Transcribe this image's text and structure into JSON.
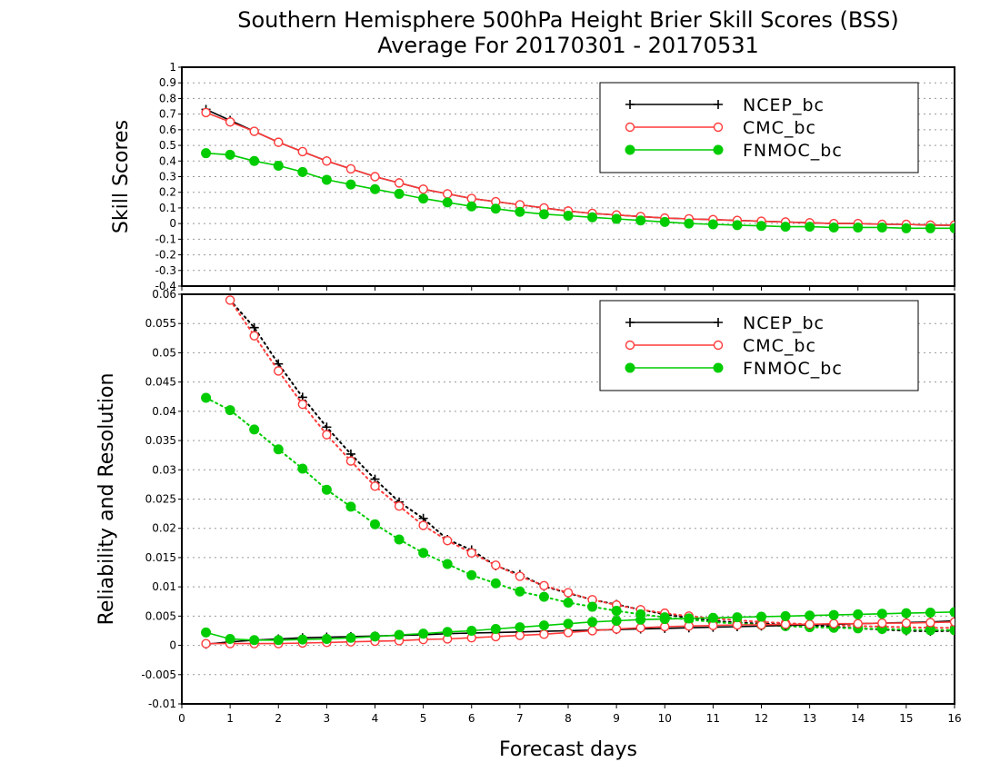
{
  "title_line1": "Southern Hemisphere 500hPa Height Brier Skill Scores (BSS)",
  "title_line2": "Average For 20170301 - 20170531",
  "xlabel": "Forecast days",
  "colors": {
    "NCEP_bc": "#000000",
    "CMC_bc": "#ff3a3a",
    "FNMOC_bc": "#00cc00"
  },
  "chart_data": [
    {
      "type": "line",
      "ylabel": "Skill Scores",
      "xlim": [
        0,
        16
      ],
      "ylim": [
        -0.4,
        1
      ],
      "x_ticks": [
        0,
        1,
        2,
        3,
        4,
        5,
        6,
        7,
        8,
        9,
        10,
        11,
        12,
        13,
        14,
        15,
        16
      ],
      "y_ticks": [
        -0.4,
        -0.3,
        -0.2,
        -0.1,
        0,
        0.1,
        0.2,
        0.3,
        0.4,
        0.5,
        0.6,
        0.7,
        0.8,
        0.9,
        1
      ],
      "y_tick_labels": [
        "-0.4",
        "-0.3",
        "-0.2",
        "-0.1",
        "0",
        "0.1",
        "0.2",
        "0.3",
        "0.4",
        "0.5",
        "0.6",
        "0.7",
        "0.8",
        "0.9",
        "1"
      ],
      "grid": true,
      "legend": {
        "position": "top-right",
        "entries": [
          "NCEP_bc",
          "CMC_bc",
          "FNMOC_bc"
        ]
      },
      "x": [
        0.5,
        1,
        1.5,
        2,
        2.5,
        3,
        3.5,
        4,
        4.5,
        5,
        5.5,
        6,
        6.5,
        7,
        7.5,
        8,
        8.5,
        9,
        9.5,
        10,
        10.5,
        11,
        11.5,
        12,
        12.5,
        13,
        13.5,
        14,
        14.5,
        15,
        15.5,
        16
      ],
      "series": [
        {
          "name": "NCEP_bc",
          "marker": "plus",
          "line": "solid",
          "values": [
            0.73,
            0.66,
            0.59,
            0.52,
            0.46,
            0.4,
            0.35,
            0.3,
            0.26,
            0.22,
            0.19,
            0.16,
            0.14,
            0.12,
            0.1,
            0.08,
            0.065,
            0.055,
            0.045,
            0.035,
            0.03,
            0.025,
            0.02,
            0.015,
            0.01,
            0.005,
            0.0,
            0.0,
            -0.005,
            -0.005,
            -0.01,
            -0.01
          ]
        },
        {
          "name": "CMC_bc",
          "marker": "open-circle",
          "line": "solid",
          "values": [
            0.71,
            0.65,
            0.59,
            0.52,
            0.46,
            0.4,
            0.35,
            0.3,
            0.26,
            0.22,
            0.19,
            0.16,
            0.14,
            0.12,
            0.1,
            0.08,
            0.065,
            0.055,
            0.045,
            0.035,
            0.03,
            0.025,
            0.02,
            0.015,
            0.01,
            0.005,
            0.0,
            0.0,
            -0.005,
            -0.005,
            -0.01,
            -0.01
          ]
        },
        {
          "name": "FNMOC_bc",
          "marker": "filled-circle",
          "line": "solid",
          "values": [
            0.45,
            0.44,
            0.4,
            0.37,
            0.33,
            0.28,
            0.25,
            0.22,
            0.19,
            0.16,
            0.135,
            0.11,
            0.095,
            0.075,
            0.06,
            0.05,
            0.04,
            0.03,
            0.02,
            0.01,
            0.0,
            -0.005,
            -0.01,
            -0.015,
            -0.02,
            -0.02,
            -0.025,
            -0.025,
            -0.025,
            -0.03,
            -0.03,
            -0.03
          ]
        }
      ]
    },
    {
      "type": "line",
      "ylabel": "Reliability and Resolution",
      "xlim": [
        0,
        16
      ],
      "ylim": [
        -0.01,
        0.06
      ],
      "x_ticks": [
        0,
        1,
        2,
        3,
        4,
        5,
        6,
        7,
        8,
        9,
        10,
        11,
        12,
        13,
        14,
        15,
        16
      ],
      "y_ticks": [
        -0.01,
        -0.005,
        0,
        0.005,
        0.01,
        0.015,
        0.02,
        0.025,
        0.03,
        0.035,
        0.04,
        0.045,
        0.05,
        0.055,
        0.06
      ],
      "y_tick_labels": [
        "-0.01",
        "-0.005",
        "0",
        "0.005",
        "0.01",
        "0.015",
        "0.02",
        "0.025",
        "0.03",
        "0.035",
        "0.04",
        "0.045",
        "0.05",
        "0.055",
        "0.06"
      ],
      "grid": true,
      "legend": {
        "position": "top-right",
        "entries": [
          "NCEP_bc",
          "CMC_bc",
          "FNMOC_bc"
        ]
      },
      "x": [
        0.5,
        1,
        1.5,
        2,
        2.5,
        3,
        3.5,
        4,
        4.5,
        5,
        5.5,
        6,
        6.5,
        7,
        7.5,
        8,
        8.5,
        9,
        9.5,
        10,
        10.5,
        11,
        11.5,
        12,
        12.5,
        13,
        13.5,
        14,
        14.5,
        15,
        15.5,
        16
      ],
      "series": [
        {
          "name": "NCEP_bc",
          "role": "resolution",
          "marker": "plus",
          "line": "dotted",
          "x": [
            1,
            1.5,
            2,
            2.5,
            3,
            3.5,
            4,
            4.5,
            5,
            5.5,
            6,
            6.5,
            7,
            7.5,
            8,
            8.5,
            9,
            9.5,
            10,
            10.5,
            11,
            11.5,
            12,
            12.5,
            13,
            13.5,
            14,
            14.5,
            15,
            15.5,
            16
          ],
          "values": [
            0.059,
            0.0543,
            0.0481,
            0.0424,
            0.0373,
            0.0327,
            0.0284,
            0.0245,
            0.0217,
            0.0181,
            0.0163,
            0.0136,
            0.0121,
            0.0101,
            0.0089,
            0.0078,
            0.007,
            0.0061,
            0.0053,
            0.0047,
            0.0042,
            0.0039,
            0.0037,
            0.0036,
            0.0034,
            0.0032,
            0.0029,
            0.0027,
            0.0025,
            0.0024,
            0.0025
          ]
        },
        {
          "name": "CMC_bc",
          "role": "resolution",
          "marker": "open-circle",
          "line": "dotted",
          "x": [
            1,
            1.5,
            2,
            2.5,
            3,
            3.5,
            4,
            4.5,
            5,
            5.5,
            6,
            6.5,
            7,
            7.5,
            8,
            8.5,
            9,
            9.5,
            10,
            10.5,
            11,
            11.5,
            12,
            12.5,
            13,
            13.5,
            14,
            14.5,
            15,
            15.5,
            16
          ],
          "values": [
            0.059,
            0.0529,
            0.0469,
            0.0412,
            0.036,
            0.0315,
            0.0272,
            0.0238,
            0.0205,
            0.0179,
            0.0158,
            0.0137,
            0.0118,
            0.0102,
            0.009,
            0.0078,
            0.0069,
            0.0061,
            0.0055,
            0.005,
            0.0046,
            0.0043,
            0.004,
            0.0038,
            0.0036,
            0.0035,
            0.0033,
            0.0032,
            0.0031,
            0.003,
            0.003
          ]
        },
        {
          "name": "FNMOC_bc",
          "role": "resolution",
          "marker": "filled-circle",
          "line": "dotted",
          "x": [
            0.5,
            1,
            1.5,
            2,
            2.5,
            3,
            3.5,
            4,
            4.5,
            5,
            5.5,
            6,
            6.5,
            7,
            7.5,
            8,
            8.5,
            9,
            9.5,
            10,
            10.5,
            11,
            11.5,
            12,
            12.5,
            13,
            13.5,
            14,
            14.5,
            15,
            15.5,
            16
          ],
          "values": [
            0.0423,
            0.0402,
            0.0369,
            0.0335,
            0.0302,
            0.0266,
            0.0237,
            0.0207,
            0.0181,
            0.0158,
            0.0139,
            0.012,
            0.0106,
            0.0092,
            0.0083,
            0.0073,
            0.0066,
            0.0059,
            0.0053,
            0.0048,
            0.0044,
            0.004,
            0.0037,
            0.0035,
            0.0033,
            0.0031,
            0.003,
            0.0029,
            0.0028,
            0.0027,
            0.0026,
            0.0026
          ]
        },
        {
          "name": "NCEP_bc",
          "role": "reliability",
          "marker": "plus",
          "line": "solid",
          "values": [
            0.0002,
            0.0006,
            0.0009,
            0.0011,
            0.0013,
            0.0014,
            0.0015,
            0.0016,
            0.0017,
            0.0018,
            0.002,
            0.0021,
            0.0022,
            0.0023,
            0.0024,
            0.0025,
            0.0026,
            0.0027,
            0.0028,
            0.0029,
            0.003,
            0.0031,
            0.0032,
            0.0033,
            0.0034,
            0.0035,
            0.0036,
            0.0037,
            0.0038,
            0.0039,
            0.004,
            0.0042
          ]
        },
        {
          "name": "CMC_bc",
          "role": "reliability",
          "marker": "open-circle",
          "line": "solid",
          "values": [
            0.0003,
            0.0003,
            0.0003,
            0.0003,
            0.0004,
            0.0005,
            0.0006,
            0.0007,
            0.0008,
            0.001,
            0.0011,
            0.0013,
            0.0015,
            0.0017,
            0.0019,
            0.0022,
            0.0025,
            0.0028,
            0.003,
            0.0032,
            0.0033,
            0.0034,
            0.0035,
            0.0035,
            0.0036,
            0.0036,
            0.0037,
            0.0037,
            0.0038,
            0.0038,
            0.0039,
            0.004
          ]
        },
        {
          "name": "FNMOC_bc",
          "role": "reliability",
          "marker": "filled-circle",
          "line": "solid",
          "values": [
            0.0022,
            0.0011,
            0.0009,
            0.0009,
            0.001,
            0.0011,
            0.0013,
            0.0015,
            0.0018,
            0.002,
            0.0023,
            0.0025,
            0.0028,
            0.0031,
            0.0034,
            0.0037,
            0.004,
            0.0042,
            0.0044,
            0.0045,
            0.0046,
            0.0047,
            0.0048,
            0.0049,
            0.005,
            0.0051,
            0.0052,
            0.0053,
            0.0054,
            0.0055,
            0.0056,
            0.0057
          ]
        }
      ]
    }
  ]
}
